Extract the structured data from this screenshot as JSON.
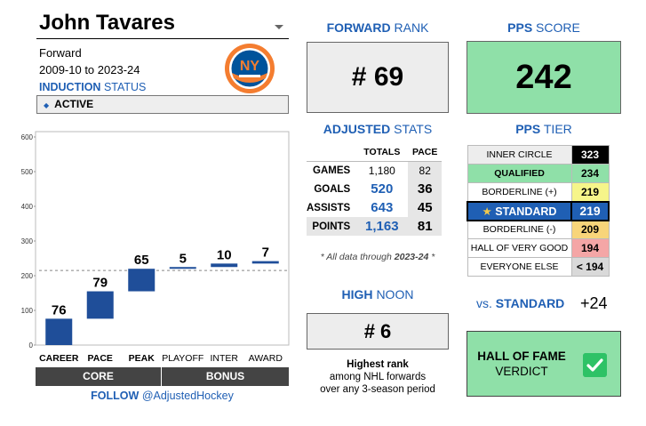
{
  "player": {
    "name": "John Tavares",
    "position": "Forward",
    "years": "2009-10 to 2023-24",
    "induction_label": "INDUCTION",
    "status_label": "STATUS",
    "status_value": "ACTIVE",
    "team_logo_icon": "islanders-logo"
  },
  "chart_data": {
    "type": "bar",
    "subtype": "waterfall",
    "categories": [
      "CAREER",
      "PACE",
      "PEAK",
      "PLAYOFF",
      "INTER",
      "AWARD"
    ],
    "increments": [
      76,
      79,
      65,
      5,
      10,
      7
    ],
    "bar_ranges": [
      [
        0,
        76
      ],
      [
        76,
        155
      ],
      [
        155,
        220
      ],
      [
        220,
        225
      ],
      [
        225,
        235
      ],
      [
        235,
        242
      ]
    ],
    "value_labels": [
      "76",
      "79",
      "65",
      "5",
      "10",
      "7"
    ],
    "y_ticks": [
      "0",
      "100",
      "200",
      "300",
      "400",
      "500",
      "600"
    ],
    "ylim": [
      0,
      600
    ],
    "reference_line": 215,
    "groups": [
      "CORE",
      "BONUS"
    ],
    "bar_color": "#1f4e99"
  },
  "follow": {
    "label": "FOLLOW",
    "handle": "@AdjustedHockey"
  },
  "forward_rank": {
    "title_a": "FORWARD",
    "title_b": "RANK",
    "value": "# 69"
  },
  "adjusted_stats": {
    "title_a": "ADJUSTED",
    "title_b": "STATS",
    "headers": {
      "totals": "TOTALS",
      "pace": "PACE"
    },
    "rows": [
      {
        "label": "GAMES",
        "total": "1,180",
        "pace": "82"
      },
      {
        "label": "GOALS",
        "total": "520",
        "pace": "36"
      },
      {
        "label": "ASSISTS",
        "total": "643",
        "pace": "45"
      },
      {
        "label": "POINTS",
        "total": "1,163",
        "pace": "81"
      }
    ],
    "note_prefix": "* All data through",
    "note_season": "2023-24",
    "note_suffix": "*"
  },
  "high_noon": {
    "title_a": "HIGH",
    "title_b": "NOON",
    "value": "# 6",
    "caption_1": "Highest rank",
    "caption_2": "among NHL forwards",
    "caption_3": "over any 3-season period"
  },
  "pps_score": {
    "title_a": "PPS",
    "title_b": "SCORE",
    "value": "242"
  },
  "pps_tier": {
    "title_a": "PPS",
    "title_b": "TIER",
    "tiers": [
      {
        "label": "INNER CIRCLE",
        "value": "323",
        "label_bg": "#ededed",
        "value_bg": "#000000",
        "value_color": "#ffffff"
      },
      {
        "label": "QUALIFIED",
        "value": "234",
        "label_bg": "#8fe0a8",
        "value_bg": "#8fe0a8",
        "value_color": "#000000"
      },
      {
        "label": "BORDERLINE (+)",
        "value": "219",
        "label_bg": "#ffffff",
        "value_bg": "#f6f58a",
        "value_color": "#000000"
      },
      {
        "label": "STANDARD",
        "value": "219",
        "selected": true,
        "star_icon": "star-icon"
      },
      {
        "label": "BORDERLINE (-)",
        "value": "209",
        "label_bg": "#ffffff",
        "value_bg": "#f8d57a",
        "value_color": "#000000"
      },
      {
        "label": "HALL OF VERY GOOD",
        "value": "194",
        "label_bg": "#ffffff",
        "value_bg": "#f4a6a6",
        "value_color": "#000000"
      },
      {
        "label": "EVERYONE ELSE",
        "value": "< 194",
        "label_bg": "#ffffff",
        "value_bg": "#d9d9d9",
        "value_color": "#000000"
      }
    ]
  },
  "vs": {
    "prefix": "vs.",
    "label": "STANDARD",
    "value": "+24"
  },
  "verdict": {
    "line1": "HALL OF FAME",
    "line2": "VERDICT",
    "icon": "check-icon"
  }
}
